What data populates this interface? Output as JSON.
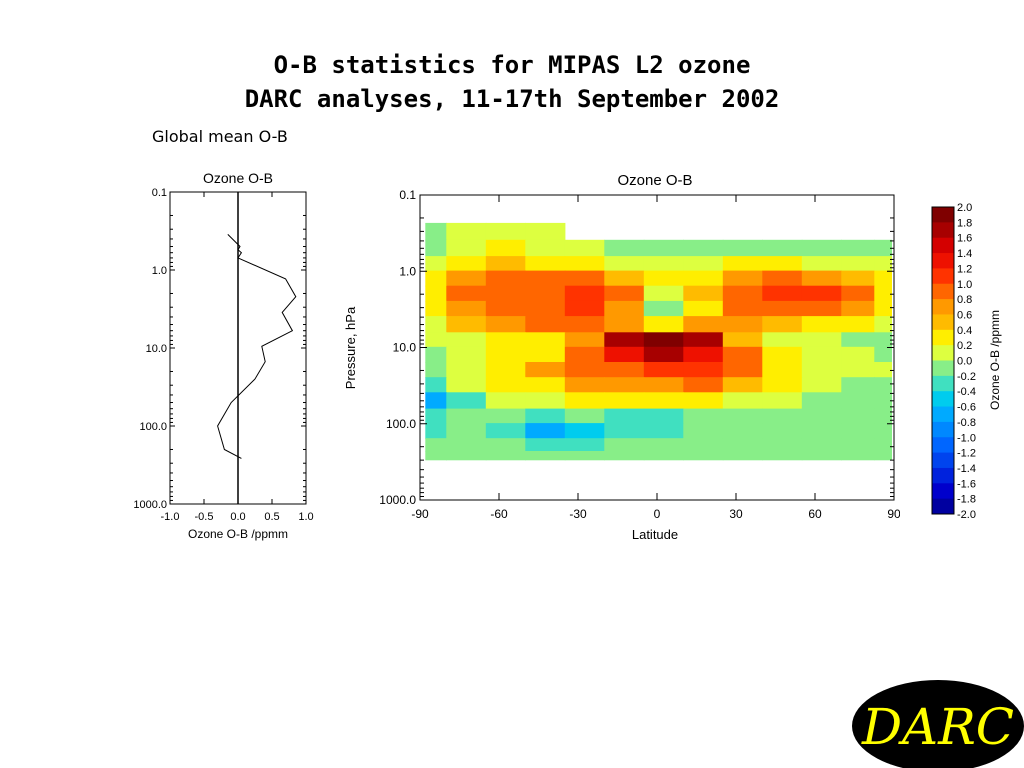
{
  "slide": {
    "title_line1": "O-B statistics for MIPAS L2 ozone",
    "title_line2": "DARC analyses, 11-17th September 2002",
    "subtitle": "Global mean O-B",
    "logo_text": "DARC"
  },
  "colors": {
    "background": "#ffffff",
    "logo_bg": "#000000",
    "logo_text": "#ffff00"
  },
  "chart_data": [
    {
      "type": "line",
      "title": "Ozone O-B",
      "xlabel": "Ozone O-B /ppmm",
      "ylabel": "",
      "xlim": [
        -1.0,
        1.0
      ],
      "ylim": [
        0.1,
        1000.0
      ],
      "y_scale": "log",
      "y_reversed": true,
      "x_ticks": [
        "-1.0",
        "-0.5",
        "0.0",
        "0.5",
        "1.0"
      ],
      "y_ticks": [
        "0.1",
        "1.0",
        "10.0",
        "100.0",
        "1000.0"
      ],
      "y_tick_values": [
        0.1,
        1.0,
        10.0,
        100.0,
        1000.0
      ],
      "x_tick_values": [
        -1.0,
        -0.5,
        0.0,
        0.5,
        1.0
      ],
      "zero_line": true,
      "series": [
        {
          "x": [
            -0.15,
            0.03,
            0.0,
            0.05,
            0.0,
            0.7,
            0.85,
            0.65,
            0.8,
            0.35,
            0.4,
            0.25,
            -0.1,
            -0.3,
            -0.2,
            0.05
          ],
          "y": [
            0.35,
            0.5,
            0.55,
            0.6,
            0.7,
            1.3,
            2.2,
            3.5,
            6.0,
            9.5,
            15.0,
            25.0,
            50.0,
            100.0,
            200.0,
            260.0
          ]
        }
      ]
    },
    {
      "type": "heatmap",
      "title": "Ozone O-B",
      "xlabel": "Latitude",
      "ylabel": "Pressure, hPa",
      "colorbar_label": "Ozone O-B /ppmm",
      "xlim": [
        -90,
        90
      ],
      "ylim": [
        0.1,
        1000.0
      ],
      "y_scale": "log",
      "y_reversed": true,
      "x_ticks": [
        "-90",
        "-60",
        "-30",
        "0",
        "30",
        "60",
        "90"
      ],
      "x_tick_values": [
        -90,
        -60,
        -30,
        0,
        30,
        60,
        90
      ],
      "y_ticks": [
        "0.1",
        "1.0",
        "10.0",
        "100.0",
        "1000.0"
      ],
      "y_tick_values": [
        0.1,
        1.0,
        10.0,
        100.0,
        1000.0
      ],
      "colorbar_ticks": [
        "2.0",
        "1.8",
        "1.6",
        "1.4",
        "1.2",
        "1.0",
        "0.8",
        "0.6",
        "0.4",
        "0.2",
        "0.0",
        "-0.2",
        "-0.4",
        "-0.6",
        "-0.8",
        "-1.0",
        "-1.2",
        "-1.4",
        "-1.6",
        "-1.8",
        "-2.0"
      ],
      "colorbar_colors": [
        "#7f0000",
        "#a70000",
        "#d40000",
        "#ee1100",
        "#ff3300",
        "#ff6600",
        "#ff9900",
        "#ffbb00",
        "#ffee00",
        "#ddff40",
        "#88ee88",
        "#40e0c0",
        "#00ccee",
        "#00aaff",
        "#0088ff",
        "#0066ff",
        "#0044ee",
        "#0022dd",
        "#0000cc",
        "#0000a0"
      ],
      "latitudes": [
        -87.5,
        -72.5,
        -57.5,
        -42.5,
        -27.5,
        -12.5,
        2.5,
        17.5,
        32.5,
        47.5,
        62.5,
        77.5,
        87.5
      ],
      "pressure_levels": [
        0.3,
        0.5,
        0.8,
        1.2,
        2.0,
        3.0,
        5.0,
        8.0,
        12.0,
        20.0,
        30.0,
        50.0,
        80.0,
        120.0,
        200.0,
        260.0
      ],
      "values": [
        [
          0.0,
          0.2,
          0.2,
          0.2,
          null,
          null,
          null,
          null,
          null,
          null,
          null,
          null,
          null
        ],
        [
          0.0,
          0.2,
          0.3,
          0.2,
          0.1,
          0.0,
          0.0,
          0.0,
          0.0,
          0.0,
          0.0,
          0.0,
          0.0
        ],
        [
          0.2,
          0.4,
          0.5,
          0.4,
          0.3,
          0.2,
          0.2,
          0.2,
          0.3,
          0.3,
          0.2,
          0.2,
          0.1
        ],
        [
          0.3,
          0.7,
          0.9,
          0.8,
          0.8,
          0.5,
          0.3,
          0.4,
          0.7,
          0.8,
          0.7,
          0.5,
          0.3
        ],
        [
          0.3,
          0.8,
          1.0,
          1.0,
          1.2,
          0.8,
          0.2,
          0.5,
          1.0,
          1.2,
          1.1,
          0.8,
          0.4
        ],
        [
          0.3,
          0.7,
          0.9,
          1.0,
          1.1,
          0.7,
          0.0,
          0.4,
          0.9,
          1.0,
          1.0,
          0.7,
          0.3
        ],
        [
          0.2,
          0.5,
          0.7,
          0.9,
          0.8,
          0.6,
          0.4,
          0.7,
          0.6,
          0.5,
          0.4,
          0.3,
          0.1
        ],
        [
          0.1,
          0.2,
          0.3,
          0.4,
          0.6,
          1.6,
          2.0,
          1.6,
          0.5,
          0.2,
          0.1,
          0.0,
          0.0
        ],
        [
          0.0,
          0.2,
          0.3,
          0.4,
          0.8,
          1.4,
          1.6,
          1.4,
          0.8,
          0.4,
          0.2,
          0.1,
          0.0
        ],
        [
          0.0,
          0.2,
          0.4,
          0.6,
          0.9,
          1.0,
          1.1,
          1.2,
          0.8,
          0.4,
          0.2,
          0.1,
          0.1
        ],
        [
          -0.3,
          0.1,
          0.3,
          0.4,
          0.6,
          0.7,
          0.7,
          0.8,
          0.5,
          0.3,
          0.1,
          0.0,
          0.0
        ],
        [
          -0.6,
          -0.2,
          0.1,
          0.2,
          0.3,
          0.3,
          0.3,
          0.3,
          0.2,
          0.1,
          0.0,
          0.0,
          -0.1
        ],
        [
          -0.4,
          -0.1,
          -0.1,
          -0.3,
          -0.1,
          -0.3,
          -0.2,
          0.0,
          0.0,
          0.0,
          -0.1,
          -0.1,
          -0.1
        ],
        [
          -0.2,
          0.0,
          -0.3,
          -0.6,
          -0.5,
          -0.4,
          -0.2,
          -0.1,
          0.0,
          0.0,
          0.0,
          0.0,
          0.0
        ],
        [
          0.0,
          0.0,
          0.0,
          -0.2,
          -0.2,
          -0.1,
          -0.1,
          0.0,
          0.0,
          0.0,
          0.0,
          0.0,
          0.0
        ],
        [
          0.0,
          0.0,
          0.0,
          0.0,
          0.0,
          0.0,
          0.0,
          0.0,
          0.0,
          0.0,
          0.0,
          0.0,
          0.0
        ]
      ]
    }
  ]
}
